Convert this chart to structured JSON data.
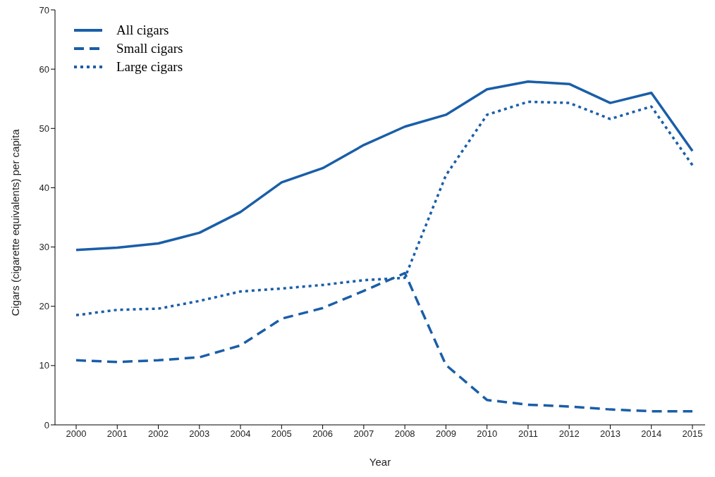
{
  "chart_data": {
    "type": "line",
    "xlabel": "Year",
    "ylabel": "Cigars (cigarette equivalents) per capita",
    "categories": [
      "2000",
      "2001",
      "2002",
      "2003",
      "2004",
      "2005",
      "2006",
      "2007",
      "2008",
      "2009",
      "2010",
      "2011",
      "2012",
      "2013",
      "2014",
      "2015"
    ],
    "ylim": [
      0,
      70
    ],
    "yticks": [
      0,
      10,
      20,
      30,
      40,
      50,
      60,
      70
    ],
    "grid": false,
    "legend": "top left",
    "marker": "none",
    "series": [
      {
        "name": "All cigars",
        "color": "#1a5ea8",
        "line_style": "solid",
        "values": [
          29.5,
          29.9,
          30.6,
          32.4,
          35.9,
          40.9,
          43.3,
          47.2,
          50.3,
          52.3,
          56.6,
          57.9,
          57.5,
          54.3,
          56.0,
          46.2
        ]
      },
      {
        "name": "Small cigars",
        "color": "#1a5ea8",
        "line_style": "dashed",
        "values": [
          10.9,
          10.6,
          10.9,
          11.4,
          13.4,
          17.9,
          19.7,
          22.6,
          25.6,
          10.1,
          4.2,
          3.4,
          3.1,
          2.6,
          2.3,
          2.3
        ]
      },
      {
        "name": "Large cigars",
        "color": "#1a5ea8",
        "line_style": "dotted",
        "values": [
          18.5,
          19.4,
          19.6,
          20.9,
          22.5,
          23.0,
          23.6,
          24.4,
          24.8,
          42.1,
          52.3,
          54.5,
          54.3,
          51.6,
          53.7,
          43.8
        ]
      }
    ]
  }
}
